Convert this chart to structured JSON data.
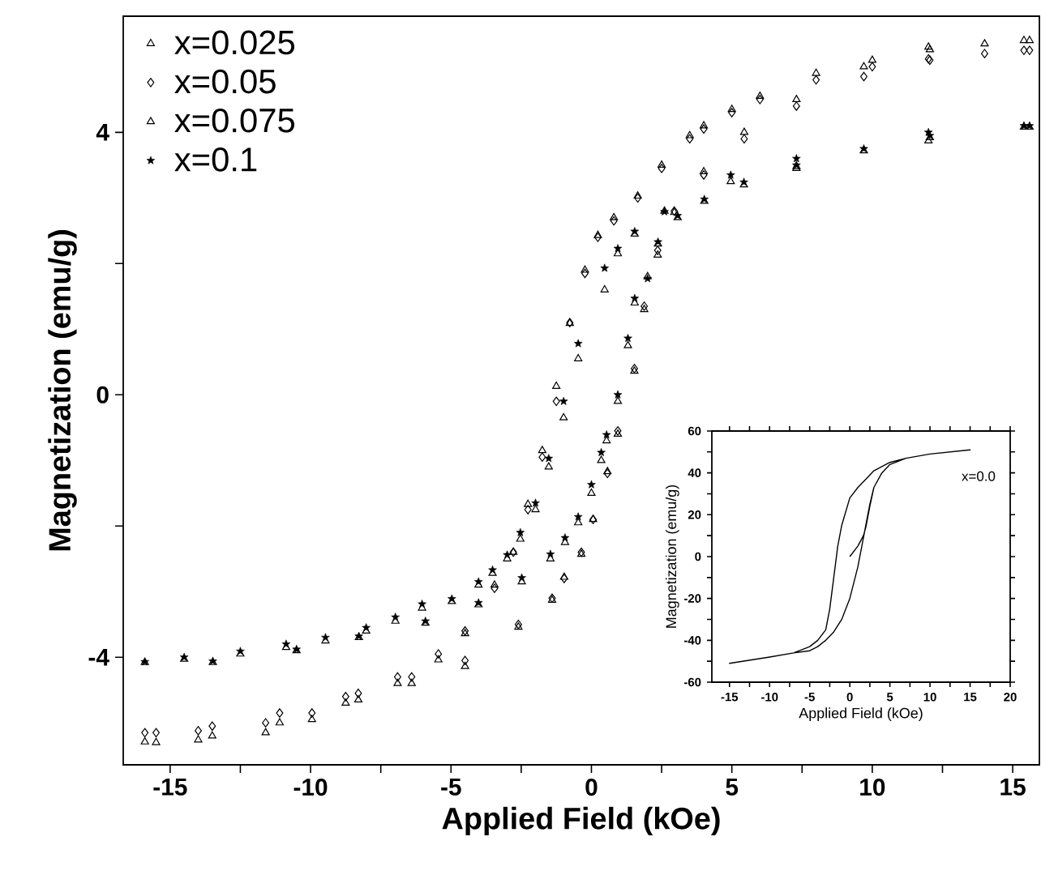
{
  "chart_data": [
    {
      "type": "scatter",
      "xlabel": "Applied Field (kOe)",
      "ylabel": "Magnetization (emu/g)",
      "xlim": [
        -16.67,
        15.95
      ],
      "ylim": [
        -5.64,
        5.77
      ],
      "xticks": [
        -15,
        {
          "value": -12.5,
          "label": null
        },
        -10,
        {
          "value": -7.5,
          "label": null
        },
        -5,
        {
          "value": -2.5,
          "label": null
        },
        0,
        {
          "value": 2.5,
          "label": null
        },
        5,
        {
          "value": 7.5,
          "label": null
        },
        10,
        {
          "value": 12.5,
          "label": null
        },
        15
      ],
      "yticks": [
        -4,
        {
          "value": -2,
          "label": null
        },
        0,
        {
          "value": 2,
          "label": null
        },
        4
      ],
      "legend": "top left",
      "series": [
        {
          "name": "x=0.025",
          "color": "#000000",
          "marker": "triangle",
          "x": [
            15.6,
            14,
            12,
            10,
            8,
            6,
            5,
            4,
            3.5,
            2.5,
            1.65,
            0.8,
            0.23,
            -0.23,
            -0.77,
            -1.25,
            -1.75,
            -2.26,
            -2.78,
            -3.45,
            -4.5,
            -5.45,
            -6.9,
            -8.3,
            -9.95,
            -11.6,
            -14,
            -15.9,
            -15.5,
            -13.5,
            -11.1,
            -8.75,
            -6.4,
            -4.5,
            -2.6,
            -1.4,
            -0.97,
            -0.36,
            0.06,
            0.57,
            0.94,
            1.53,
            1.88,
            2.36,
            2.95,
            4.0,
            5.44,
            7.3,
            9.7,
            12.05,
            15.4
          ],
          "values": [
            5.4,
            5.35,
            5.3,
            5.1,
            4.9,
            4.55,
            4.35,
            4.1,
            3.95,
            3.5,
            3.03,
            2.7,
            2.43,
            1.9,
            1.09,
            0.13,
            -0.85,
            -1.67,
            -2.4,
            -2.9,
            -3.64,
            -4.04,
            -4.4,
            -4.65,
            -4.95,
            -5.15,
            -5.26,
            -5.29,
            -5.3,
            -5.2,
            -5.0,
            -4.7,
            -4.4,
            -4.14,
            -3.54,
            -3.13,
            -2.78,
            -2.43,
            -1.9,
            -1.17,
            -0.6,
            0.36,
            1.3,
            2.13,
            2.78,
            3.4,
            4.0,
            4.5,
            5.0,
            5.26,
            5.4
          ]
        },
        {
          "name": "x=0.05",
          "color": "#000000",
          "marker": "diamond",
          "x": [
            15.6,
            14,
            12,
            10,
            8,
            6,
            5,
            4,
            3.5,
            2.5,
            1.65,
            0.8,
            0.23,
            -0.23,
            -0.77,
            -1.25,
            -1.75,
            -2.26,
            -2.78,
            -3.45,
            -4.5,
            -5.45,
            -6.9,
            -8.3,
            -9.95,
            -11.6,
            -14,
            -15.9,
            -15.5,
            -13.5,
            -11.1,
            -8.75,
            -6.4,
            -4.5,
            -2.6,
            -1.4,
            -0.97,
            -0.36,
            0.06,
            0.57,
            0.94,
            1.53,
            1.88,
            2.36,
            2.95,
            4.0,
            5.44,
            7.3,
            9.7,
            12.05,
            15.4
          ],
          "values": [
            5.25,
            5.2,
            5.12,
            5.0,
            4.8,
            4.5,
            4.3,
            4.05,
            3.9,
            3.45,
            3.0,
            2.65,
            2.4,
            1.85,
            1.1,
            -0.1,
            -0.95,
            -1.75,
            -2.4,
            -2.95,
            -3.6,
            -3.95,
            -4.3,
            -4.55,
            -4.85,
            -5.0,
            -5.12,
            -5.15,
            -5.15,
            -5.05,
            -4.85,
            -4.6,
            -4.3,
            -4.05,
            -3.5,
            -3.1,
            -2.8,
            -2.4,
            -1.9,
            -1.2,
            -0.55,
            0.4,
            1.35,
            2.2,
            2.8,
            3.35,
            3.9,
            4.4,
            4.85,
            5.1,
            5.25
          ]
        },
        {
          "name": "x=0.075",
          "color": "#000000",
          "marker": "triangle",
          "x": [
            15.6,
            12.0,
            7.3,
            4.96,
            2.6,
            1.54,
            0.94,
            0.47,
            -0.47,
            -0.99,
            -1.52,
            -1.99,
            -2.53,
            -3.0,
            -3.52,
            -4.02,
            -4.97,
            -6.03,
            -6.98,
            -8.02,
            -9.47,
            -10.87,
            -12.5,
            -14.5,
            -15.9,
            -13.48,
            -10.5,
            -8.28,
            -5.91,
            -4.02,
            -2.48,
            -1.46,
            -0.94,
            -0.47,
            0.0,
            0.35,
            0.54,
            0.94,
            1.3,
            1.54,
            2.0,
            2.37,
            3.07,
            4.02,
            5.43,
            7.3,
            9.7,
            12.05,
            15.4
          ],
          "values": [
            4.08,
            3.87,
            3.45,
            3.25,
            2.8,
            2.45,
            2.15,
            1.6,
            0.55,
            -0.35,
            -1.1,
            -1.75,
            -2.2,
            -2.5,
            -2.72,
            -2.9,
            -3.15,
            -3.25,
            -3.45,
            -3.6,
            -3.75,
            -3.85,
            -3.95,
            -4.03,
            -4.08,
            -4.08,
            -3.9,
            -3.7,
            -3.48,
            -3.2,
            -2.85,
            -2.5,
            -2.25,
            -1.95,
            -1.5,
            -1.0,
            -0.7,
            -0.1,
            0.75,
            1.4,
            1.8,
            2.3,
            2.7,
            2.95,
            3.2,
            3.48,
            3.72,
            3.92,
            4.08
          ]
        },
        {
          "name": "x=0.1",
          "color": "#000000",
          "marker": "star",
          "x": [
            15.6,
            12.0,
            7.3,
            4.96,
            2.6,
            1.54,
            0.94,
            0.47,
            -0.47,
            -0.99,
            -1.52,
            -1.99,
            -2.53,
            -3.0,
            -3.52,
            -4.02,
            -4.97,
            -6.03,
            -6.98,
            -8.02,
            -9.47,
            -10.87,
            -12.5,
            -14.5,
            -15.9,
            -13.48,
            -10.5,
            -8.28,
            -5.91,
            -4.02,
            -2.48,
            -1.46,
            -0.94,
            -0.47,
            0.0,
            0.35,
            0.54,
            0.94,
            1.3,
            1.54,
            2.0,
            2.37,
            3.07,
            4.02,
            5.43,
            7.3,
            9.7,
            12.05,
            15.4
          ],
          "values": [
            4.1,
            4.0,
            3.6,
            3.35,
            2.79,
            2.49,
            2.23,
            1.93,
            0.78,
            -0.1,
            -0.97,
            -1.65,
            -2.1,
            -2.44,
            -2.67,
            -2.85,
            -3.11,
            -3.19,
            -3.39,
            -3.55,
            -3.7,
            -3.8,
            -3.91,
            -4.0,
            -4.07,
            -4.06,
            -3.88,
            -3.68,
            -3.45,
            -3.17,
            -2.79,
            -2.43,
            -2.18,
            -1.86,
            -1.37,
            -0.88,
            -0.61,
            0.0,
            0.86,
            1.47,
            1.77,
            2.33,
            2.73,
            2.98,
            3.24,
            3.5,
            3.75,
            3.95,
            4.1
          ]
        }
      ]
    },
    {
      "type": "line",
      "xlabel": "Applied Field (kOe)",
      "ylabel": "Magnetization (emu/g)",
      "xlim": [
        -17.2,
        20
      ],
      "ylim": [
        -60,
        60
      ],
      "xticks": [
        -15,
        {
          "value": -12.5,
          "label": null
        },
        -10,
        {
          "value": -7.5,
          "label": null
        },
        -5,
        {
          "value": -2.5,
          "label": null
        },
        0,
        {
          "value": 2.5,
          "label": null
        },
        5,
        {
          "value": 7.5,
          "label": null
        },
        10,
        {
          "value": 12.5,
          "label": null
        },
        15,
        {
          "value": 17.5,
          "label": null
        },
        20
      ],
      "yticks": [
        -60,
        {
          "value": -50,
          "label": null
        },
        -40,
        {
          "value": -30,
          "label": null
        },
        -20,
        {
          "value": -10,
          "label": null
        },
        0,
        {
          "value": 10,
          "label": null
        },
        20,
        {
          "value": 30,
          "label": null
        },
        40,
        {
          "value": 50,
          "label": null
        },
        60
      ],
      "series": [
        {
          "name": "x=0.0",
          "color": "#000000",
          "x": [
            0,
            1,
            1.7,
            2,
            2.5,
            3,
            4,
            5,
            7,
            10,
            15,
            10,
            7,
            5,
            3,
            2,
            1,
            0,
            -1,
            -1.5,
            -2,
            -2.5,
            -3,
            -4,
            -5,
            -7,
            -10,
            -15,
            -10,
            -7,
            -5,
            -4,
            -3,
            -2,
            -1,
            0,
            1,
            1.5,
            2,
            2.5,
            3,
            4,
            5,
            7,
            10,
            15
          ],
          "values": [
            0,
            5,
            10,
            14,
            24,
            33,
            40,
            44,
            47,
            49,
            51,
            49,
            47,
            45,
            41,
            37,
            33,
            28,
            15,
            5,
            -10,
            -25,
            -35,
            -40,
            -43,
            -46,
            -48,
            -51,
            -48,
            -46,
            -45,
            -43,
            -40,
            -36,
            -30,
            -20,
            -5,
            5,
            15,
            25,
            33,
            40,
            44,
            47,
            49,
            51
          ]
        }
      ]
    }
  ]
}
